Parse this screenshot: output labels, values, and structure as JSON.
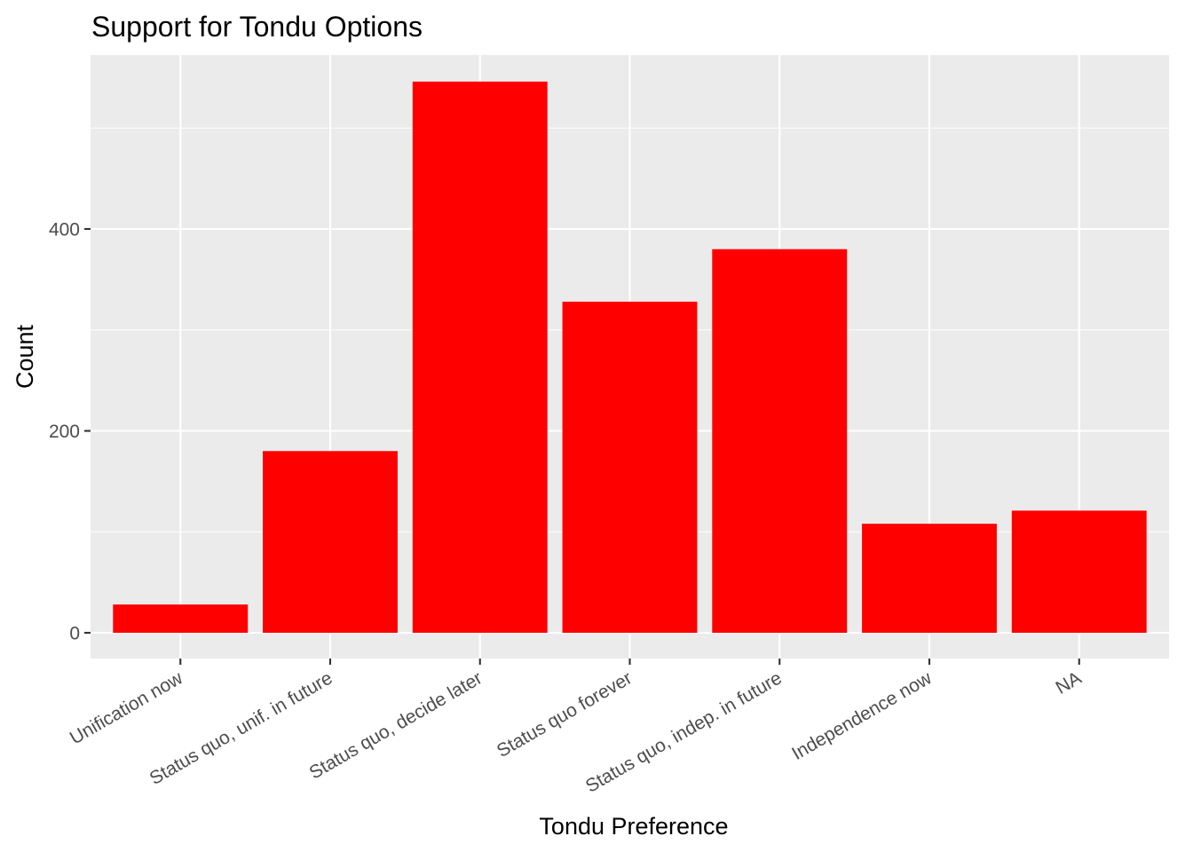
{
  "chart_data": {
    "type": "bar",
    "title": "Support for Tondu Options",
    "xlabel": "Tondu Preference",
    "ylabel": "Count",
    "categories": [
      "Unification now",
      "Status quo, unif. in future",
      "Status quo, decide later",
      "Status quo forever",
      "Status quo, indep. in future",
      "Independence now",
      "NA"
    ],
    "values": [
      28,
      180,
      546,
      328,
      380,
      108,
      121
    ],
    "ylim": [
      -27,
      573
    ],
    "yticks": [
      0,
      200,
      400
    ],
    "ytick_labels": [
      "0",
      "200",
      "400"
    ],
    "bar_color": "#ff0000",
    "panel_background": "#ebebeb",
    "grid": true,
    "legend": "none"
  }
}
